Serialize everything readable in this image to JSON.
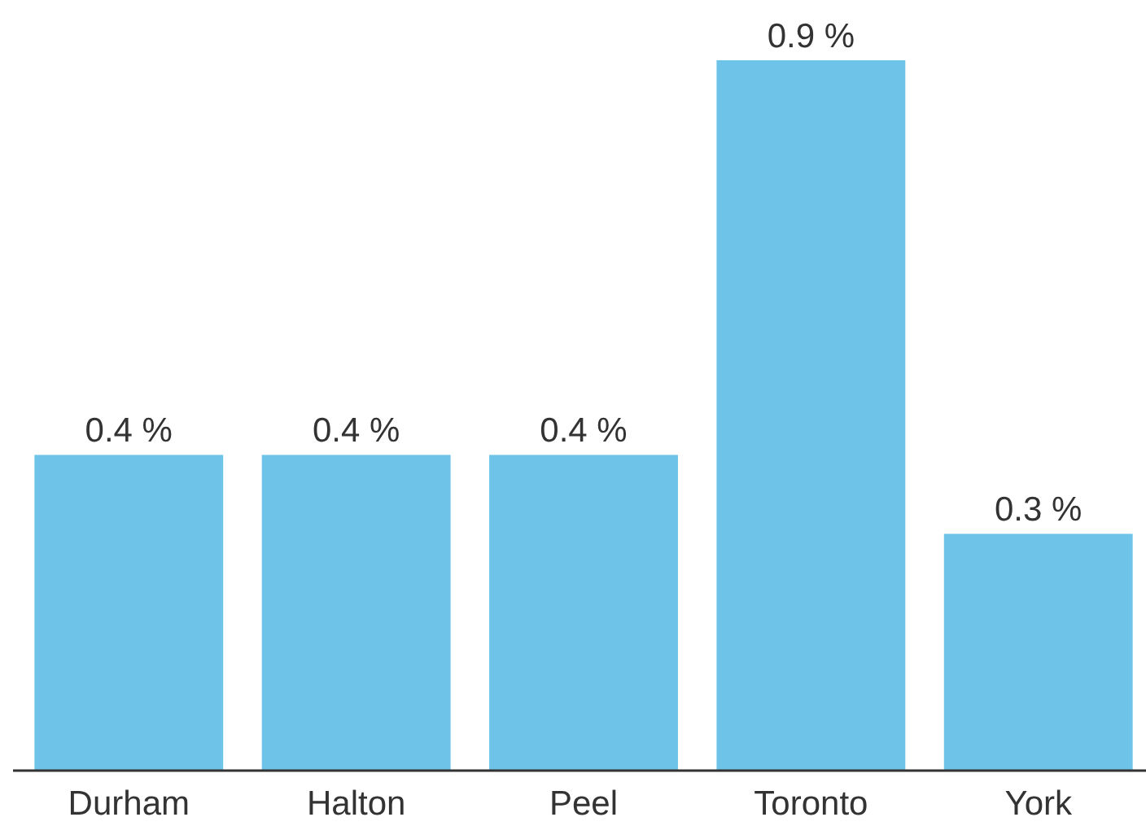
{
  "chart_data": {
    "type": "bar",
    "categories": [
      "Durham",
      "Halton",
      "Peel",
      "Toronto",
      "York"
    ],
    "values": [
      0.4,
      0.4,
      0.4,
      0.9,
      0.3
    ],
    "value_labels": [
      "0.4 %",
      "0.4 %",
      "0.4 %",
      "0.9 %",
      "0.3 %"
    ],
    "color": "#6ec4e8"
  }
}
